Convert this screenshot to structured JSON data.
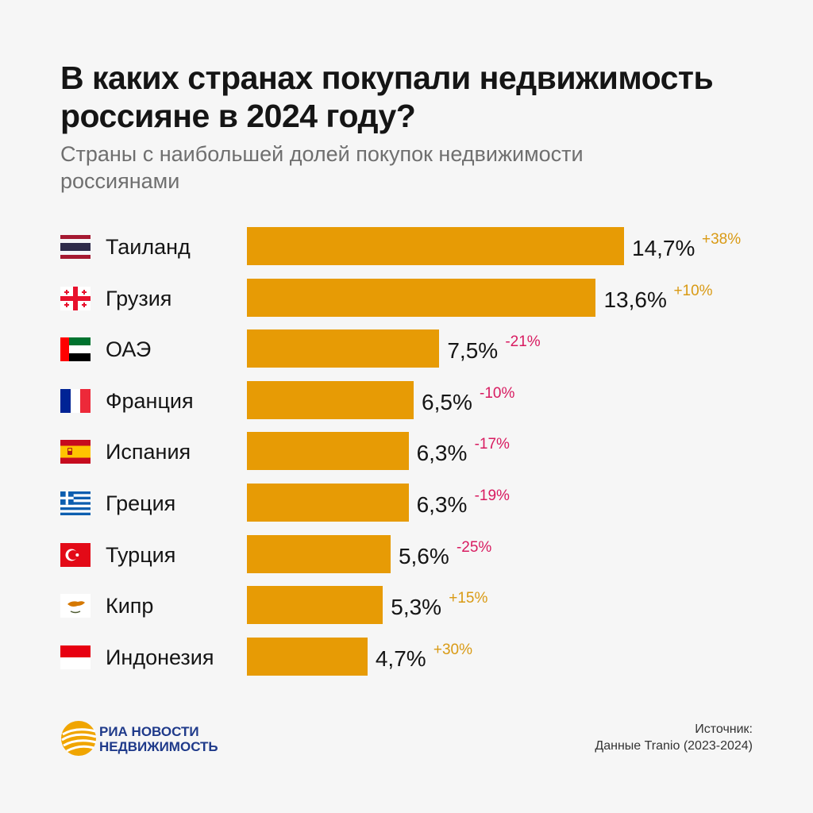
{
  "header": {
    "title": "В каких странах покупали недвижимость россияне в 2024 году?",
    "subtitle": "Страны с наибольшей долей покупок недвижимости россиянами"
  },
  "colors": {
    "bar": "#e79b05",
    "positive": "#d99a14",
    "negative": "#d81b60"
  },
  "chart_data": {
    "type": "bar",
    "orientation": "horizontal",
    "title": "В каких странах покупали недвижимость россияне в 2024 году?",
    "subtitle": "Страны с наибольшей долей покупок недвижимости россиянами",
    "xlabel": "",
    "ylabel": "",
    "unit": "%",
    "grid": false,
    "categories": [
      "Таиланд",
      "Грузия",
      "ОАЭ",
      "Франция",
      "Испания",
      "Греция",
      "Турция",
      "Кипр",
      "Индонезия"
    ],
    "values": [
      14.7,
      13.6,
      7.5,
      6.5,
      6.3,
      6.3,
      5.6,
      5.3,
      4.7
    ],
    "value_labels": [
      "14,7%",
      "13,6%",
      "7,5%",
      "6,5%",
      "6,3%",
      "6,3%",
      "5,6%",
      "5,3%",
      "4,7%"
    ],
    "changes": [
      "+38%",
      "+10%",
      "-21%",
      "-10%",
      "-17%",
      "-19%",
      "-25%",
      "+15%",
      "+30%"
    ],
    "flag_icons": [
      "thailand-flag-icon",
      "georgia-flag-icon",
      "uae-flag-icon",
      "france-flag-icon",
      "spain-flag-icon",
      "greece-flag-icon",
      "turkey-flag-icon",
      "cyprus-flag-icon",
      "indonesia-flag-icon"
    ]
  },
  "footer": {
    "brand_line1": "РИА НОВОСТИ",
    "brand_line2": "НЕДВИЖИМОСТЬ",
    "source_label": "Источник:",
    "source_text": "Данные Tranio (2023-2024)",
    "logo_icon": "ria-globe-logo-icon"
  }
}
